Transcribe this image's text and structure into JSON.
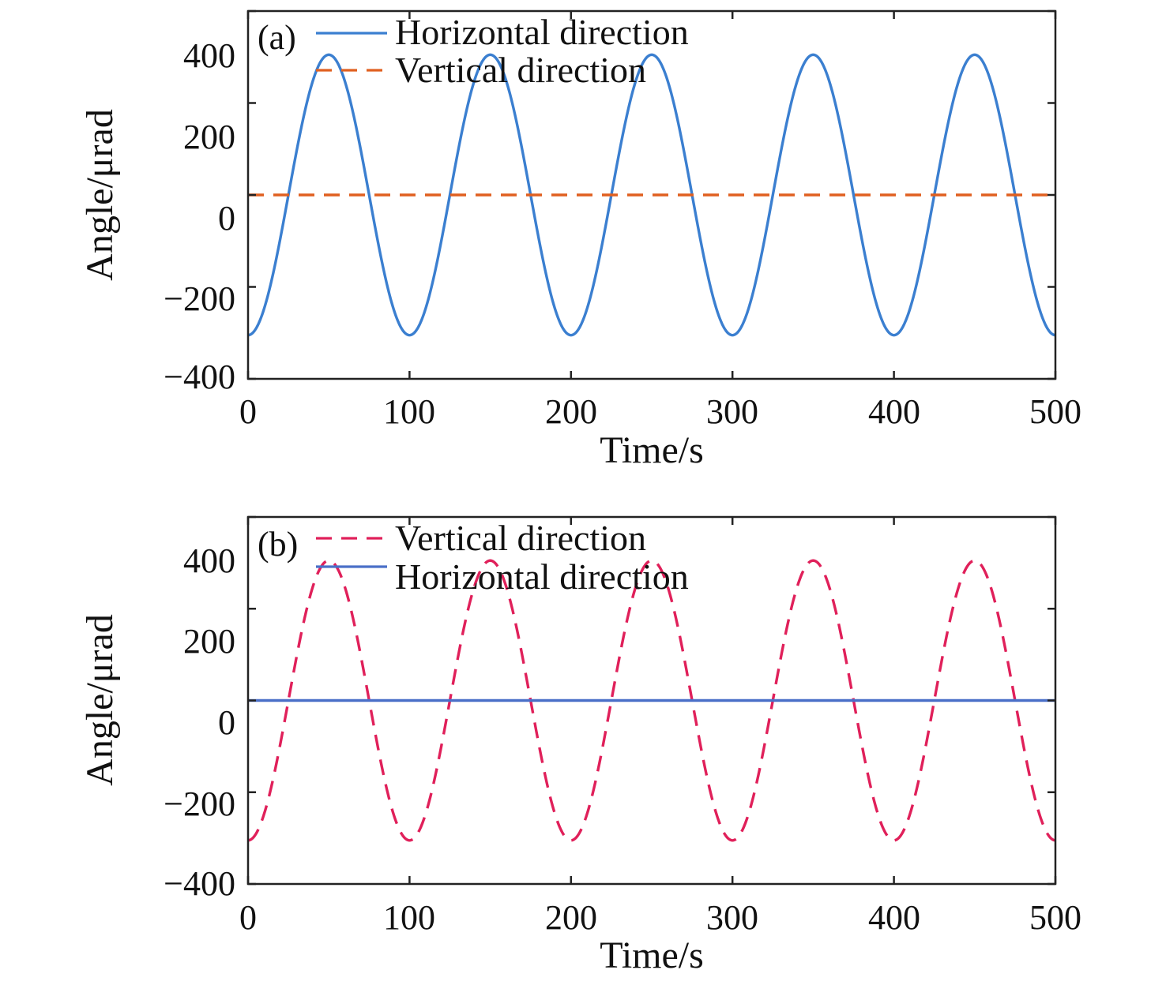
{
  "chart_data": [
    {
      "type": "line",
      "panel_tag": "(a)",
      "xlabel": "Time/s",
      "ylabel": "Angle/μrad",
      "xlim": [
        0,
        500
      ],
      "ylim": [
        -400,
        400
      ],
      "xticks": [
        0,
        100,
        200,
        300,
        400,
        500
      ],
      "yticks": [
        -400,
        -200,
        0,
        200,
        400
      ],
      "xtick_labels": [
        "0",
        "100",
        "200",
        "300",
        "400",
        "500"
      ],
      "ytick_labels": [
        "−400",
        "−200",
        "0",
        "200",
        "400"
      ],
      "legend_position": "top-left",
      "series": [
        {
          "name": "Horizontal direction",
          "style": "solid",
          "color": "#3b7fd0",
          "function": "sine",
          "amplitude": 305,
          "period": 100,
          "phase": 75
        },
        {
          "name": "Vertical direction",
          "style": "dashed",
          "color": "#e06020",
          "function": "constant",
          "value": 0
        }
      ]
    },
    {
      "type": "line",
      "panel_tag": "(b)",
      "xlabel": "Time/s",
      "ylabel": "Angle/μrad",
      "xlim": [
        0,
        500
      ],
      "ylim": [
        -400,
        400
      ],
      "xticks": [
        0,
        100,
        200,
        300,
        400,
        500
      ],
      "yticks": [
        -400,
        -200,
        0,
        200,
        400
      ],
      "xtick_labels": [
        "0",
        "100",
        "200",
        "300",
        "400",
        "500"
      ],
      "ytick_labels": [
        "−400",
        "−200",
        "0",
        "200",
        "400"
      ],
      "legend_position": "top-left",
      "series": [
        {
          "name": "Vertical direction",
          "style": "dashed",
          "color": "#e0205a",
          "function": "sine",
          "amplitude": 305,
          "period": 100,
          "phase": 75
        },
        {
          "name": "Horizontal direction",
          "style": "solid",
          "color": "#4a6fc8",
          "function": "constant",
          "value": 0
        }
      ]
    }
  ]
}
